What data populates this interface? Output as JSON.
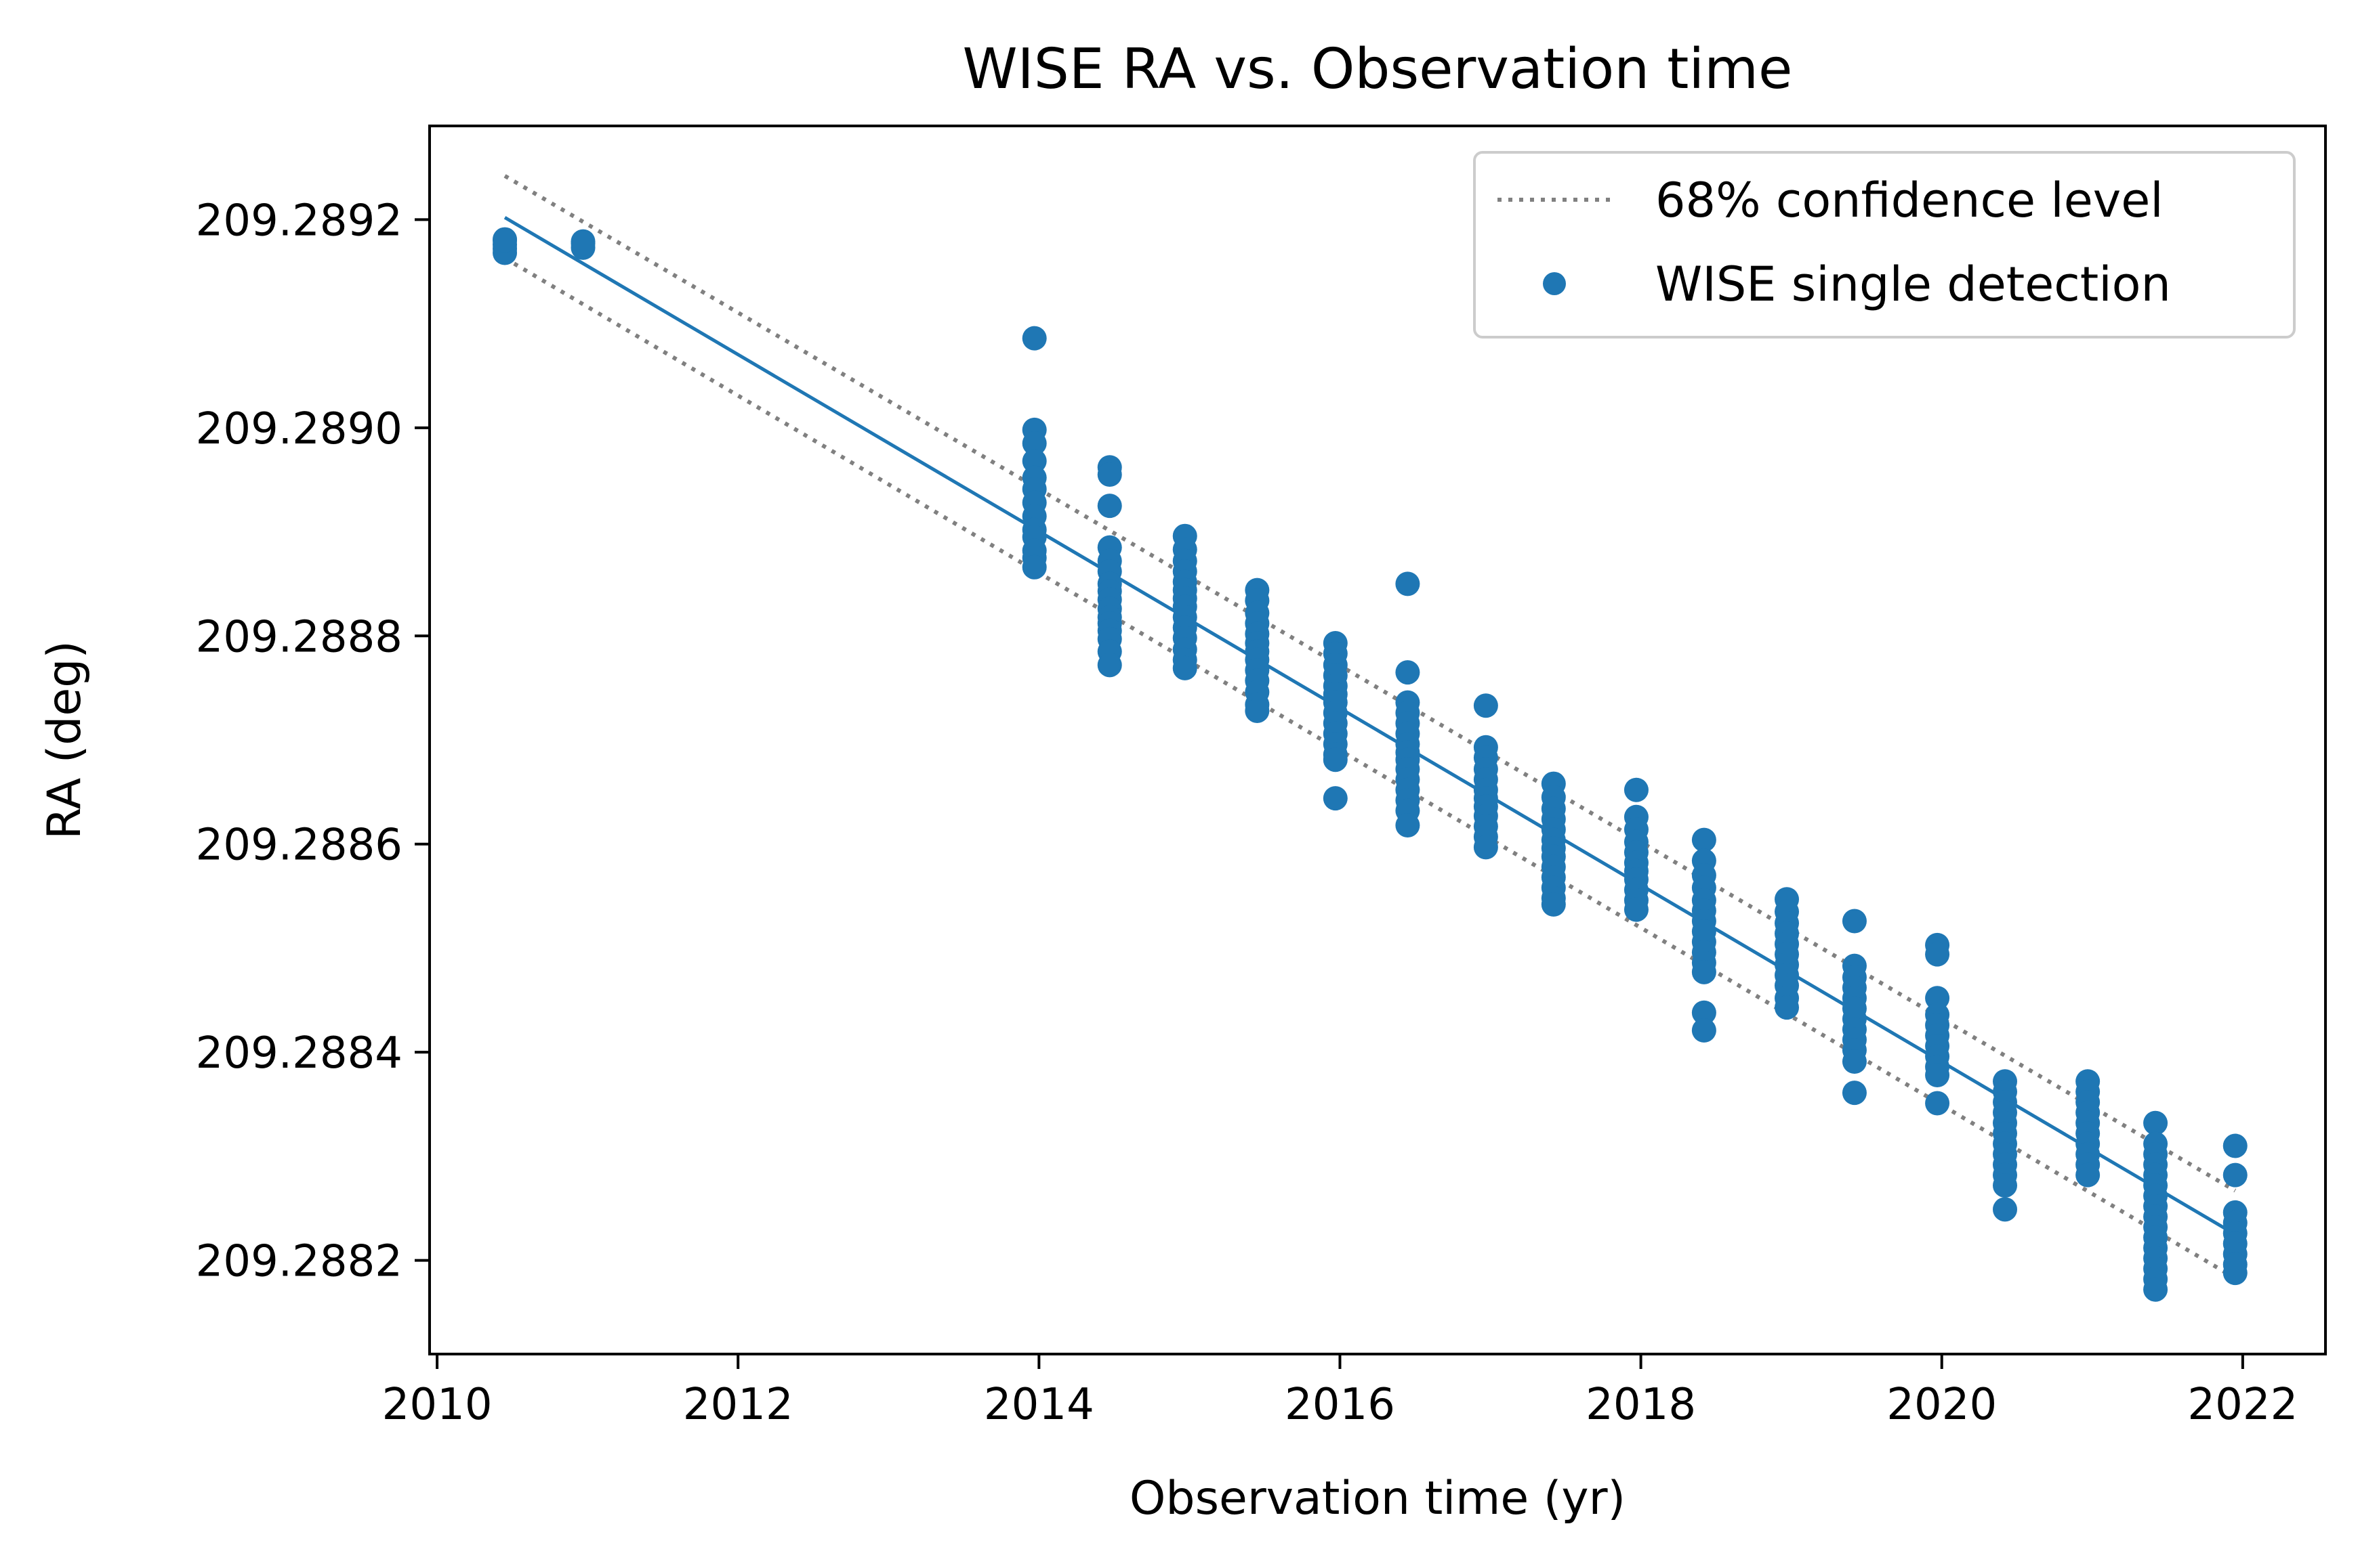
{
  "chart_data": {
    "type": "scatter",
    "title": "WISE RA vs. Observation time",
    "xlabel": "Observation time (yr)",
    "ylabel": "RA (deg)",
    "xlim": [
      2009.95,
      2022.55
    ],
    "ylim": [
      209.28811,
      209.28929
    ],
    "x_ticks": [
      "2010",
      "2012",
      "2014",
      "2016",
      "2018",
      "2020",
      "2022"
    ],
    "y_ticks": [
      "209.2882",
      "209.2884",
      "209.2886",
      "209.2888",
      "209.2890",
      "209.2892"
    ],
    "grid": false,
    "legend_position": "top-right",
    "colors": {
      "points": "#1f77b4",
      "fit": "#1f77b4",
      "confidence": "#808080",
      "axes": "#000000"
    },
    "series": [
      {
        "name": "68% confidence level",
        "kind": "dotted-line",
        "segments": [
          {
            "x": [
              2010.45,
              2021.95
            ],
            "y": [
              209.289242,
              209.288267
            ]
          },
          {
            "x": [
              2010.45,
              2021.95
            ],
            "y": [
              209.289163,
              209.288183
            ]
          }
        ]
      },
      {
        "name": "",
        "kind": "fit-line",
        "x": [
          2010.45,
          2021.95
        ],
        "y": [
          209.289202,
          209.288225
        ]
      },
      {
        "name": "WISE single detection",
        "kind": "scatter",
        "epochs": [
          {
            "x": 2010.45,
            "y": [
              209.289181,
              209.289176,
              209.289172,
              209.289168,
              209.28918
            ]
          },
          {
            "x": 2010.97,
            "y": [
              209.289179,
              209.289173,
              209.289177
            ]
          },
          {
            "x": 2013.97,
            "y": [
              209.289086,
              209.288998,
              209.288985,
              209.288968,
              209.288952,
              209.288941,
              209.288928,
              209.288915,
              209.288902,
              209.288895,
              209.288882,
              209.288875,
              209.288866
            ]
          },
          {
            "x": 2014.47,
            "y": [
              209.288962,
              209.288955,
              209.288925,
              209.288885,
              209.288872,
              209.288862,
              209.28885,
              209.288843,
              209.288835,
              209.288826,
              209.288818,
              209.288812,
              209.288805,
              209.288797,
              209.288785,
              209.288772
            ]
          },
          {
            "x": 2014.97,
            "y": [
              209.288896,
              209.288883,
              209.288872,
              209.288862,
              209.288852,
              209.288844,
              209.288836,
              209.288828,
              209.288818,
              209.288808,
              209.288798,
              209.288787,
              209.288777,
              209.288769
            ]
          },
          {
            "x": 2015.45,
            "y": [
              209.288844,
              209.288834,
              209.288822,
              209.288812,
              209.288802,
              209.288793,
              209.288785,
              209.288777,
              209.288767,
              209.288757,
              209.288746,
              209.288734,
              209.288728
            ]
          },
          {
            "x": 2015.97,
            "y": [
              209.288793,
              209.288783,
              209.288772,
              209.288762,
              209.288752,
              209.288744,
              209.288736,
              209.288726,
              209.288716,
              209.288706,
              209.288696,
              209.288686,
              209.288681,
              209.288644
            ]
          },
          {
            "x": 2016.45,
            "y": [
              209.28885,
              209.288765,
              209.288736,
              209.288726,
              209.288716,
              209.288706,
              209.288696,
              209.288688,
              209.288681,
              209.288672,
              209.288662,
              209.288652,
              209.288642,
              209.288632,
              209.288618
            ]
          },
          {
            "x": 2016.97,
            "y": [
              209.288733,
              209.288693,
              209.288683,
              209.288672,
              209.288662,
              209.288652,
              209.288644,
              209.288636,
              209.288627,
              209.288617,
              209.288607,
              209.288597
            ]
          },
          {
            "x": 2017.42,
            "y": [
              209.288658,
              209.288645,
              209.288634,
              209.288624,
              209.288614,
              209.288604,
              209.288596,
              209.288588,
              209.288578,
              209.288568,
              209.288558,
              209.288548,
              209.288542
            ]
          },
          {
            "x": 2017.97,
            "y": [
              209.288652,
              209.288626,
              209.288614,
              209.288602,
              209.288592,
              209.288582,
              209.288574,
              209.288566,
              209.288556,
              209.288546,
              209.288537
            ]
          },
          {
            "x": 2018.42,
            "y": [
              209.288604,
              209.288584,
              209.28857,
              209.288558,
              209.288546,
              209.288536,
              209.288526,
              209.288516,
              209.288506,
              209.288496,
              209.288486,
              209.288477,
              209.288438,
              209.288421
            ]
          },
          {
            "x": 2018.97,
            "y": [
              209.288547,
              209.288535,
              209.288524,
              209.288514,
              209.288504,
              209.288494,
              209.288484,
              209.288474,
              209.288464,
              209.288452,
              209.288443
            ]
          },
          {
            "x": 2019.42,
            "y": [
              209.288526,
              209.288483,
              209.288472,
              209.288462,
              209.288452,
              209.288442,
              209.288432,
              209.288422,
              209.288412,
              209.288402,
              209.288391,
              209.288361
            ]
          },
          {
            "x": 2019.97,
            "y": [
              209.288503,
              209.288494,
              209.288452,
              209.288436,
              209.288426,
              209.288416,
              209.288406,
              209.288396,
              209.288386,
              209.288378,
              209.288351
            ]
          },
          {
            "x": 2020.42,
            "y": [
              209.288372,
              209.288362,
              209.288352,
              209.288342,
              209.288332,
              209.288322,
              209.288312,
              209.288302,
              209.288292,
              209.288282,
              209.288272,
              209.288249
            ]
          },
          {
            "x": 2020.97,
            "y": [
              209.288372,
              209.288362,
              209.288352,
              209.288342,
              209.288332,
              209.288322,
              209.288312,
              209.288302,
              209.288292,
              209.288282
            ]
          },
          {
            "x": 2021.42,
            "y": [
              209.288332,
              209.288312,
              209.288302,
              209.288292,
              209.288282,
              209.288272,
              209.288262,
              209.288252,
              209.288242,
              209.288232,
              209.288222,
              209.288212,
              209.288202,
              209.288192,
              209.288182,
              209.288172
            ]
          },
          {
            "x": 2021.95,
            "y": [
              209.28831,
              209.288282,
              209.288246,
              209.288236,
              209.288226,
              209.288216,
              209.288206,
              209.288196,
              209.288188
            ]
          }
        ]
      }
    ]
  }
}
